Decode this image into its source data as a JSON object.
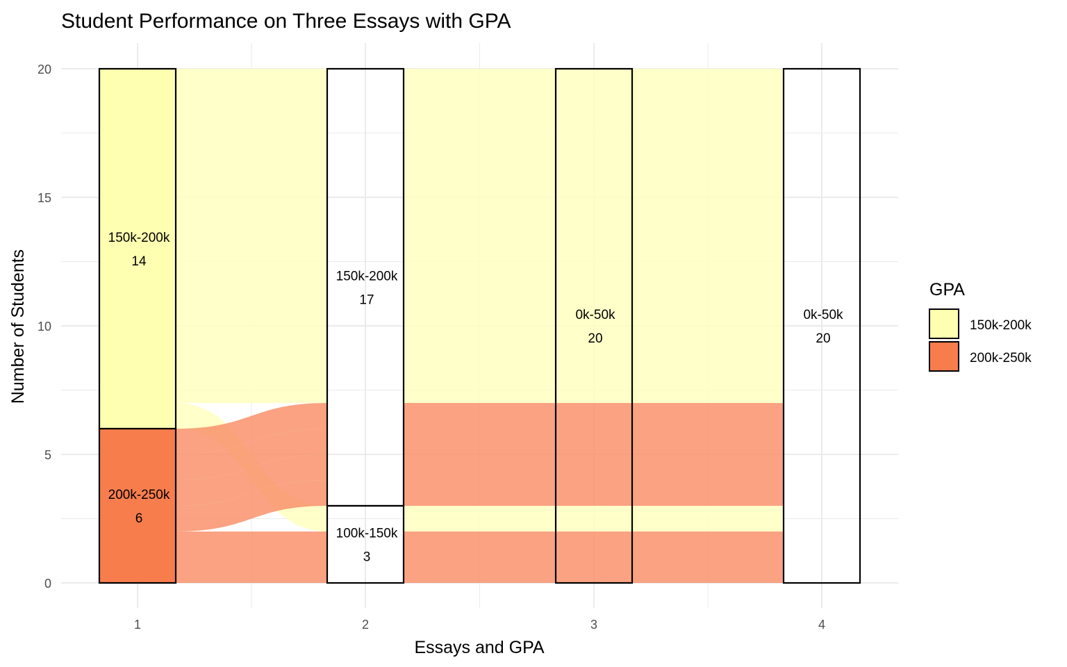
{
  "chart_data": {
    "type": "alluvial",
    "title": "Student Performance on Three Essays with GPA",
    "xlabel": "Essays and GPA",
    "ylabel": "Number of Students",
    "x_ticks": [
      "1",
      "2",
      "3",
      "4"
    ],
    "y_ticks": [
      "0",
      "5",
      "10",
      "15",
      "20"
    ],
    "ylim": [
      0,
      20
    ],
    "grid": true,
    "legend": {
      "title": "GPA",
      "placement": "right",
      "entries": [
        {
          "label": "150k-200k",
          "color": "#ffffb2"
        },
        {
          "label": "200k-250k",
          "color": "#f87d4d"
        }
      ]
    },
    "strata": [
      {
        "axis": 1,
        "label": "150k-200k",
        "count": 14,
        "count_label": "14",
        "ymin": 6,
        "ymax": 20,
        "fill": "#ffffb2"
      },
      {
        "axis": 1,
        "label": "200k-250k",
        "count": 6,
        "count_label": "6",
        "ymin": 0,
        "ymax": 6,
        "fill": "#f87d4d"
      },
      {
        "axis": 2,
        "label": "150k-200k",
        "count": 17,
        "count_label": "17",
        "ymin": 3,
        "ymax": 20,
        "fill": "none"
      },
      {
        "axis": 2,
        "label": "100k-150k",
        "count": 3,
        "count_label": "3",
        "ymin": 0,
        "ymax": 3,
        "fill": "none"
      },
      {
        "axis": 3,
        "label": "0k-50k",
        "count": 20,
        "count_label": "20",
        "ymin": 0,
        "ymax": 20,
        "fill": "none"
      },
      {
        "axis": 4,
        "label": "0k-50k",
        "count": 20,
        "count_label": "20",
        "ymin": 0,
        "ymax": 20,
        "fill": "none"
      }
    ],
    "flows": [
      {
        "group": "150k-200k",
        "from_axis": 1,
        "to_axis": 2,
        "from": [
          7,
          20
        ],
        "to": [
          7,
          20
        ]
      },
      {
        "group": "150k-200k",
        "from_axis": 1,
        "to_axis": 2,
        "from": [
          6,
          7
        ],
        "to": [
          2,
          3
        ]
      },
      {
        "group": "200k-250k",
        "from_axis": 1,
        "to_axis": 2,
        "from": [
          5,
          6
        ],
        "to": [
          6,
          7
        ]
      },
      {
        "group": "200k-250k",
        "from_axis": 1,
        "to_axis": 2,
        "from": [
          4,
          5
        ],
        "to": [
          5,
          6
        ]
      },
      {
        "group": "200k-250k",
        "from_axis": 1,
        "to_axis": 2,
        "from": [
          3,
          4
        ],
        "to": [
          4,
          5
        ]
      },
      {
        "group": "200k-250k",
        "from_axis": 1,
        "to_axis": 2,
        "from": [
          2,
          3
        ],
        "to": [
          3,
          4
        ]
      },
      {
        "group": "200k-250k",
        "from_axis": 1,
        "to_axis": 2,
        "from": [
          0,
          2
        ],
        "to": [
          0,
          2
        ]
      },
      {
        "group": "150k-200k",
        "from_axis": 2,
        "to_axis": 4,
        "from": [
          7,
          20
        ],
        "to": [
          7,
          20
        ]
      },
      {
        "group": "200k-250k",
        "from_axis": 2,
        "to_axis": 4,
        "from": [
          3,
          7
        ],
        "to": [
          3,
          7
        ]
      },
      {
        "group": "150k-200k",
        "from_axis": 2,
        "to_axis": 4,
        "from": [
          2,
          3
        ],
        "to": [
          2,
          3
        ]
      },
      {
        "group": "200k-250k",
        "from_axis": 2,
        "to_axis": 4,
        "from": [
          0,
          2
        ],
        "to": [
          0,
          2
        ]
      }
    ],
    "colors": {
      "150k-200k": "#ffffb2",
      "200k-250k": "#f87d4d",
      "flow_150k-200k": "#ffffc0",
      "flow_200k-250k": "#f9926c"
    }
  }
}
